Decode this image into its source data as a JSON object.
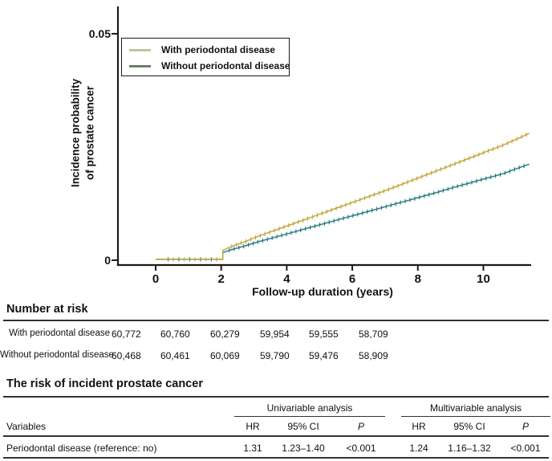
{
  "chart": {
    "y_axis_title_line1": "Incidence probability",
    "y_axis_title_line2": "of prostate cancer",
    "x_axis_title": "Follow-up duration (years)",
    "y_tick_labels": [
      "0",
      "0.05"
    ],
    "legend": [
      {
        "label": "With periodontal disease",
        "swatch_color": "#bfc49f"
      },
      {
        "label": "Without periodontal disease",
        "swatch_color": "#6e7e67"
      }
    ]
  },
  "chart_data": {
    "type": "line",
    "title": "",
    "xlabel": "Follow-up duration (years)",
    "ylabel": "Incidence probability of prostate cancer",
    "xlim": [
      -1.2,
      11.7
    ],
    "ylim": [
      0,
      0.05
    ],
    "x_ticks": [
      0,
      2,
      4,
      6,
      8,
      10
    ],
    "y_ticks": [
      {
        "v": 0,
        "label": "0"
      },
      {
        "v": 0.05,
        "label": "0.05"
      }
    ],
    "grid": false,
    "legend_position": "top-left",
    "curve_style": "step-then-rise with censoring tick marks",
    "series": [
      {
        "name": "Without periodontal disease",
        "color": "#2e7d85",
        "x": [
          0,
          2.05,
          2.05,
          2.3,
          2.7,
          3.1,
          3.6,
          4.1,
          4.6,
          5.1,
          5.6,
          6.1,
          6.6,
          7.1,
          7.6,
          8.1,
          8.6,
          9.1,
          9.6,
          10.1,
          10.6,
          11.0,
          11.4
        ],
        "y": [
          0.0002,
          0.0002,
          0.0017,
          0.0023,
          0.0031,
          0.004,
          0.005,
          0.006,
          0.007,
          0.008,
          0.009,
          0.01,
          0.011,
          0.012,
          0.013,
          0.014,
          0.015,
          0.0161,
          0.0171,
          0.0181,
          0.0191,
          0.0202,
          0.0212
        ]
      },
      {
        "name": "With periodontal disease",
        "color": "#c2a73e",
        "x": [
          0,
          2.05,
          2.05,
          2.3,
          2.7,
          3.1,
          3.6,
          4.1,
          4.6,
          5.1,
          5.6,
          6.1,
          6.6,
          7.1,
          7.6,
          8.1,
          8.6,
          9.1,
          9.6,
          10.1,
          10.6,
          11.0,
          11.4
        ],
        "y": [
          0.0002,
          0.0002,
          0.0022,
          0.003,
          0.004,
          0.0052,
          0.0065,
          0.0078,
          0.0091,
          0.0104,
          0.0117,
          0.013,
          0.0143,
          0.0156,
          0.017,
          0.0184,
          0.0198,
          0.0212,
          0.0226,
          0.024,
          0.0254,
          0.0267,
          0.028
        ]
      }
    ]
  },
  "number_at_risk": {
    "heading": "Number at risk",
    "rows": [
      {
        "label": "With periodontal disease",
        "values": [
          "60,772",
          "60,760",
          "60,279",
          "59,954",
          "59,555",
          "58,709"
        ]
      },
      {
        "label": "Without periodontal disease",
        "values": [
          "60,468",
          "60,461",
          "60,069",
          "59,790",
          "59,476",
          "58,909"
        ]
      }
    ]
  },
  "risk_table": {
    "title": "The risk of incident prostate cancer",
    "group_headers": [
      "Univariable analysis",
      "Multivariable analysis"
    ],
    "variables_header": "Variables",
    "col_headers": [
      "HR",
      "95% CI",
      "P",
      "HR",
      "95% CI",
      "P"
    ],
    "row": {
      "label": "Periodontal disease (reference: no)",
      "values": [
        "1.31",
        "1.23–1.40",
        "<0.001",
        "1.24",
        "1.16–1.32",
        "<0.001"
      ]
    }
  },
  "colors": {
    "with_curve": "#c2a73e",
    "without_curve": "#2e7d85",
    "axis": "#1a1a1a",
    "rule": "#333333"
  }
}
